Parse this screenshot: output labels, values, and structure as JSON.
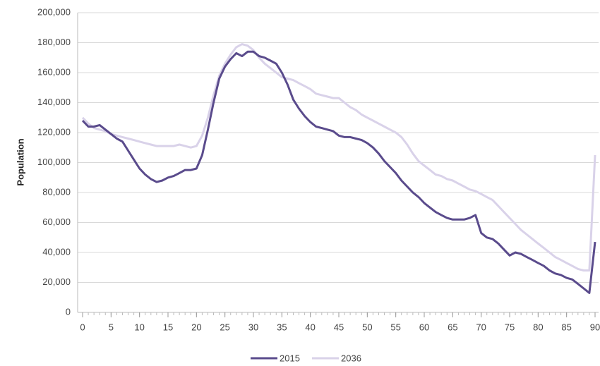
{
  "chart_data": {
    "type": "line",
    "y_label": "Population",
    "x": [
      0,
      1,
      2,
      3,
      4,
      5,
      6,
      7,
      8,
      9,
      10,
      11,
      12,
      13,
      14,
      15,
      16,
      17,
      18,
      19,
      20,
      21,
      22,
      23,
      24,
      25,
      26,
      27,
      28,
      29,
      30,
      31,
      32,
      33,
      34,
      35,
      36,
      37,
      38,
      39,
      40,
      41,
      42,
      43,
      44,
      45,
      46,
      47,
      48,
      49,
      50,
      51,
      52,
      53,
      54,
      55,
      56,
      57,
      58,
      59,
      60,
      61,
      62,
      63,
      64,
      65,
      66,
      67,
      68,
      69,
      70,
      71,
      72,
      73,
      74,
      75,
      76,
      77,
      78,
      79,
      80,
      81,
      82,
      83,
      84,
      85,
      86,
      87,
      88,
      89,
      90
    ],
    "series": [
      {
        "name": "2015",
        "color": "#5a4b8c",
        "values": [
          128000,
          124000,
          124000,
          125000,
          122000,
          119000,
          116000,
          114000,
          108000,
          102000,
          96000,
          92000,
          89000,
          87000,
          88000,
          90000,
          91000,
          93000,
          95000,
          95000,
          96000,
          105000,
          122000,
          140000,
          156000,
          164000,
          169000,
          173000,
          171000,
          174000,
          174000,
          171000,
          170000,
          168000,
          166000,
          160000,
          152000,
          142000,
          136000,
          131000,
          127000,
          124000,
          123000,
          122000,
          121000,
          118000,
          117000,
          117000,
          116000,
          115000,
          113000,
          110000,
          106000,
          101000,
          97000,
          93000,
          88000,
          84000,
          80000,
          77000,
          73000,
          70000,
          67000,
          65000,
          63000,
          62000,
          62000,
          62000,
          63000,
          65000,
          53000,
          50000,
          49000,
          46000,
          42000,
          38000,
          40000,
          39000,
          37000,
          35000,
          33000,
          31000,
          28000,
          26000,
          25000,
          23000,
          22000,
          19000,
          16000,
          13000,
          47000
        ]
      },
      {
        "name": "2036",
        "color": "#d9d2e9",
        "values": [
          130000,
          126000,
          123000,
          122000,
          121000,
          119000,
          118000,
          117000,
          116000,
          115000,
          114000,
          113000,
          112000,
          111000,
          111000,
          111000,
          111000,
          112000,
          111000,
          110000,
          111000,
          118000,
          130000,
          145000,
          158000,
          166000,
          172000,
          177000,
          179000,
          178000,
          175000,
          170000,
          166000,
          163000,
          160000,
          157000,
          156000,
          155000,
          153000,
          151000,
          149000,
          146000,
          145000,
          144000,
          143000,
          143000,
          140000,
          137000,
          135000,
          132000,
          130000,
          128000,
          126000,
          124000,
          122000,
          120000,
          117000,
          112000,
          106000,
          101000,
          98000,
          95000,
          92000,
          91000,
          89000,
          88000,
          86000,
          84000,
          82000,
          81000,
          79000,
          77000,
          75000,
          71000,
          67000,
          63000,
          59000,
          55000,
          52000,
          49000,
          46000,
          43000,
          40000,
          37000,
          35000,
          33000,
          31000,
          29000,
          28000,
          28000,
          105000
        ]
      }
    ],
    "xlim": [
      0,
      90
    ],
    "xticks": [
      0,
      5,
      10,
      15,
      20,
      25,
      30,
      35,
      40,
      45,
      50,
      55,
      60,
      65,
      70,
      75,
      80,
      85,
      90
    ],
    "ylim": [
      0,
      200000
    ],
    "yticks": [
      0,
      {
        "value": 20000,
        "label": "20,000"
      },
      {
        "value": 40000,
        "label": "40,000"
      },
      {
        "value": 60000,
        "label": "60,000"
      },
      {
        "value": 80000,
        "label": "80,000"
      },
      {
        "value": 100000,
        "label": "100,000"
      },
      {
        "value": 120000,
        "label": "120,000"
      },
      {
        "value": 140000,
        "label": "140,000"
      },
      {
        "value": 160000,
        "label": "160,000"
      },
      {
        "value": 180000,
        "label": "180,000"
      },
      {
        "value": 200000,
        "label": "200,000"
      }
    ],
    "grid": true,
    "legend": "bottom"
  }
}
